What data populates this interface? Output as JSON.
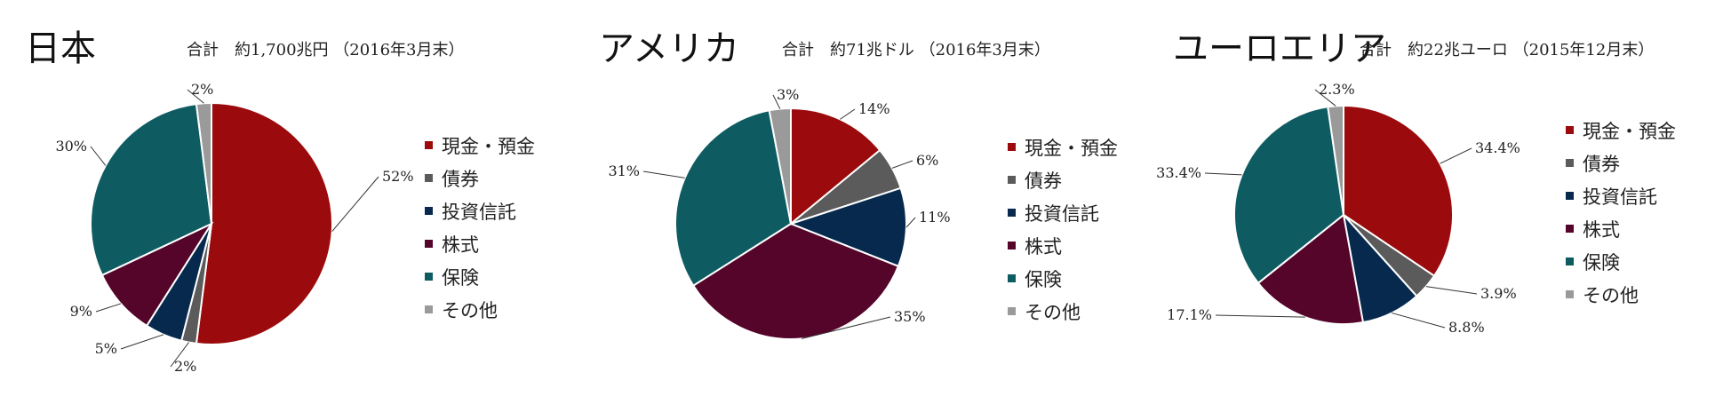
{
  "colors": {
    "cash": "#9b0a0c",
    "bonds": "#5b5b5b",
    "funds": "#06294d",
    "stocks": "#55042a",
    "insurance": "#0e5c62",
    "other": "#9a9a9a"
  },
  "legend_labels": [
    "現金・預金",
    "債券",
    "投資信託",
    "株式",
    "保険",
    "その他"
  ],
  "chart_data": [
    {
      "type": "pie",
      "title": "日本",
      "subtitle": "合計　約1,700兆円 （2016年3月末）",
      "categories": [
        "現金・預金",
        "債券",
        "投資信託",
        "株式",
        "保険",
        "その他"
      ],
      "values": [
        52,
        2,
        5,
        9,
        30,
        2
      ],
      "value_labels": [
        "52%",
        "2%",
        "5%",
        "9%",
        "30%",
        "2%"
      ],
      "legend_position": "right"
    },
    {
      "type": "pie",
      "title": "アメリカ",
      "subtitle": "合計　約71兆ドル （2016年3月末）",
      "categories": [
        "現金・預金",
        "債券",
        "投資信託",
        "株式",
        "保険",
        "その他"
      ],
      "values": [
        14,
        6,
        11,
        35,
        31,
        3
      ],
      "value_labels": [
        "14%",
        "6%",
        "11%",
        "35%",
        "31%",
        "3%"
      ],
      "legend_position": "right"
    },
    {
      "type": "pie",
      "title": "ユーロエリア",
      "subtitle": "合計　約22兆ユーロ （2015年12月末）",
      "categories": [
        "現金・預金",
        "債券",
        "投資信託",
        "株式",
        "保険",
        "その他"
      ],
      "values": [
        34.4,
        3.9,
        8.8,
        17.1,
        33.4,
        2.3
      ],
      "value_labels": [
        "34.4%",
        "3.9%",
        "8.8%",
        "17.1%",
        "33.4%",
        "2.3%"
      ],
      "legend_position": "right"
    }
  ]
}
